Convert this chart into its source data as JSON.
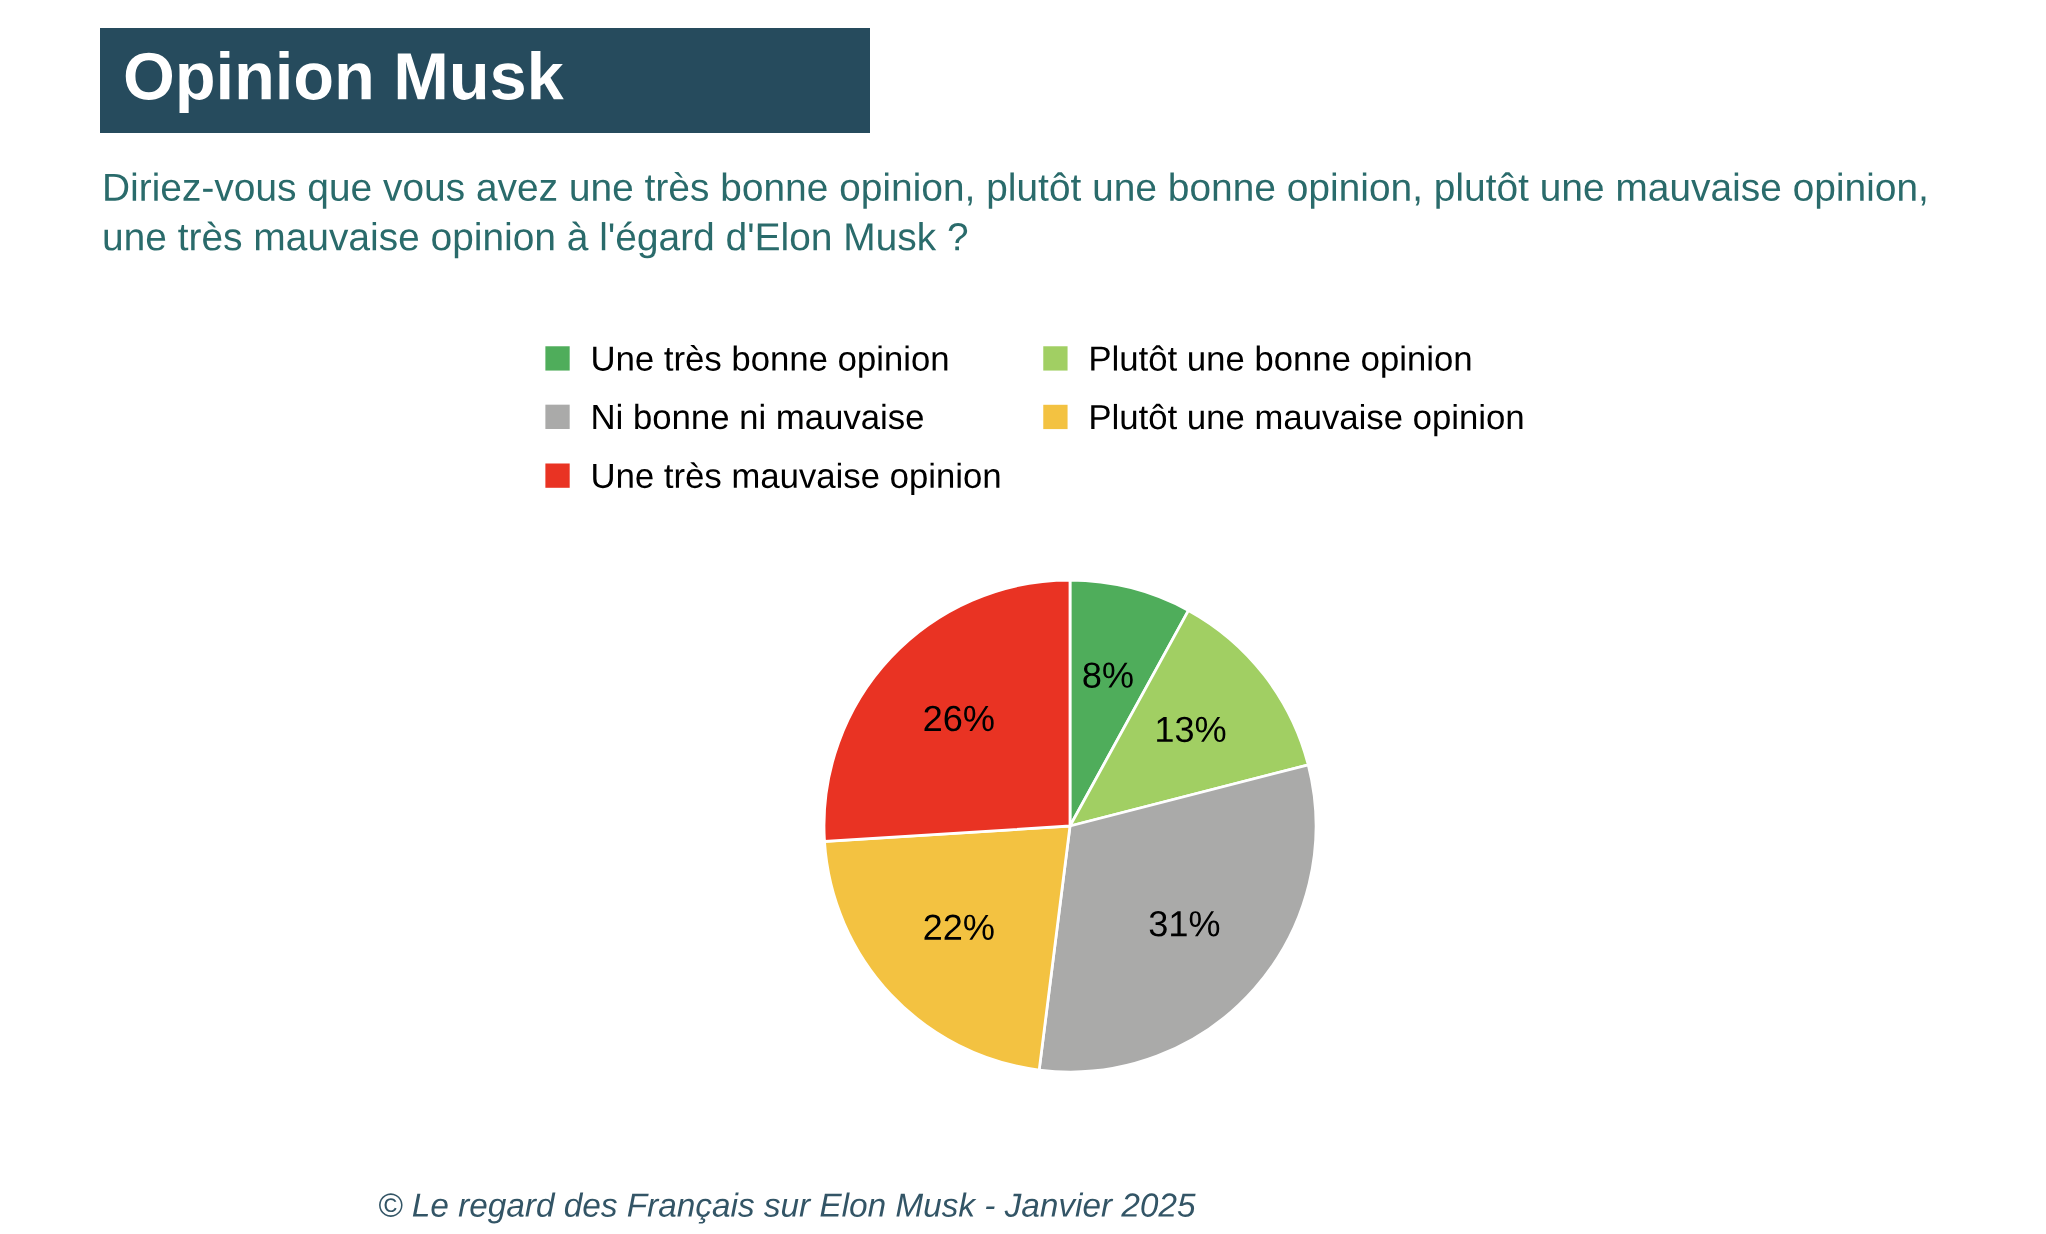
{
  "chart_data": {
    "type": "pie",
    "title": "Opinion Musk",
    "subtitle": "Diriez-vous que vous avez une très bonne opinion, plutôt une bonne opinion, plutôt une mauvaise opinion, une très mauvaise opinion à l'égard d'Elon Musk ?",
    "categories": [
      "Une très bonne opinion",
      "Plutôt une bonne opinion",
      "Ni bonne ni mauvaise",
      "Plutôt une mauvaise opinion",
      "Une très mauvaise opinion"
    ],
    "values": [
      8,
      13,
      31,
      22,
      26
    ],
    "colors": [
      "#4fad5b",
      "#a1cf63",
      "#aaaaa9",
      "#f3c241",
      "#e93323"
    ],
    "value_labels": [
      "8%",
      "13%",
      "31%",
      "22%",
      "26%"
    ],
    "legend": "top",
    "annotations": [
      "© Le regard des Français sur Elon Musk - Janvier 2025"
    ]
  }
}
